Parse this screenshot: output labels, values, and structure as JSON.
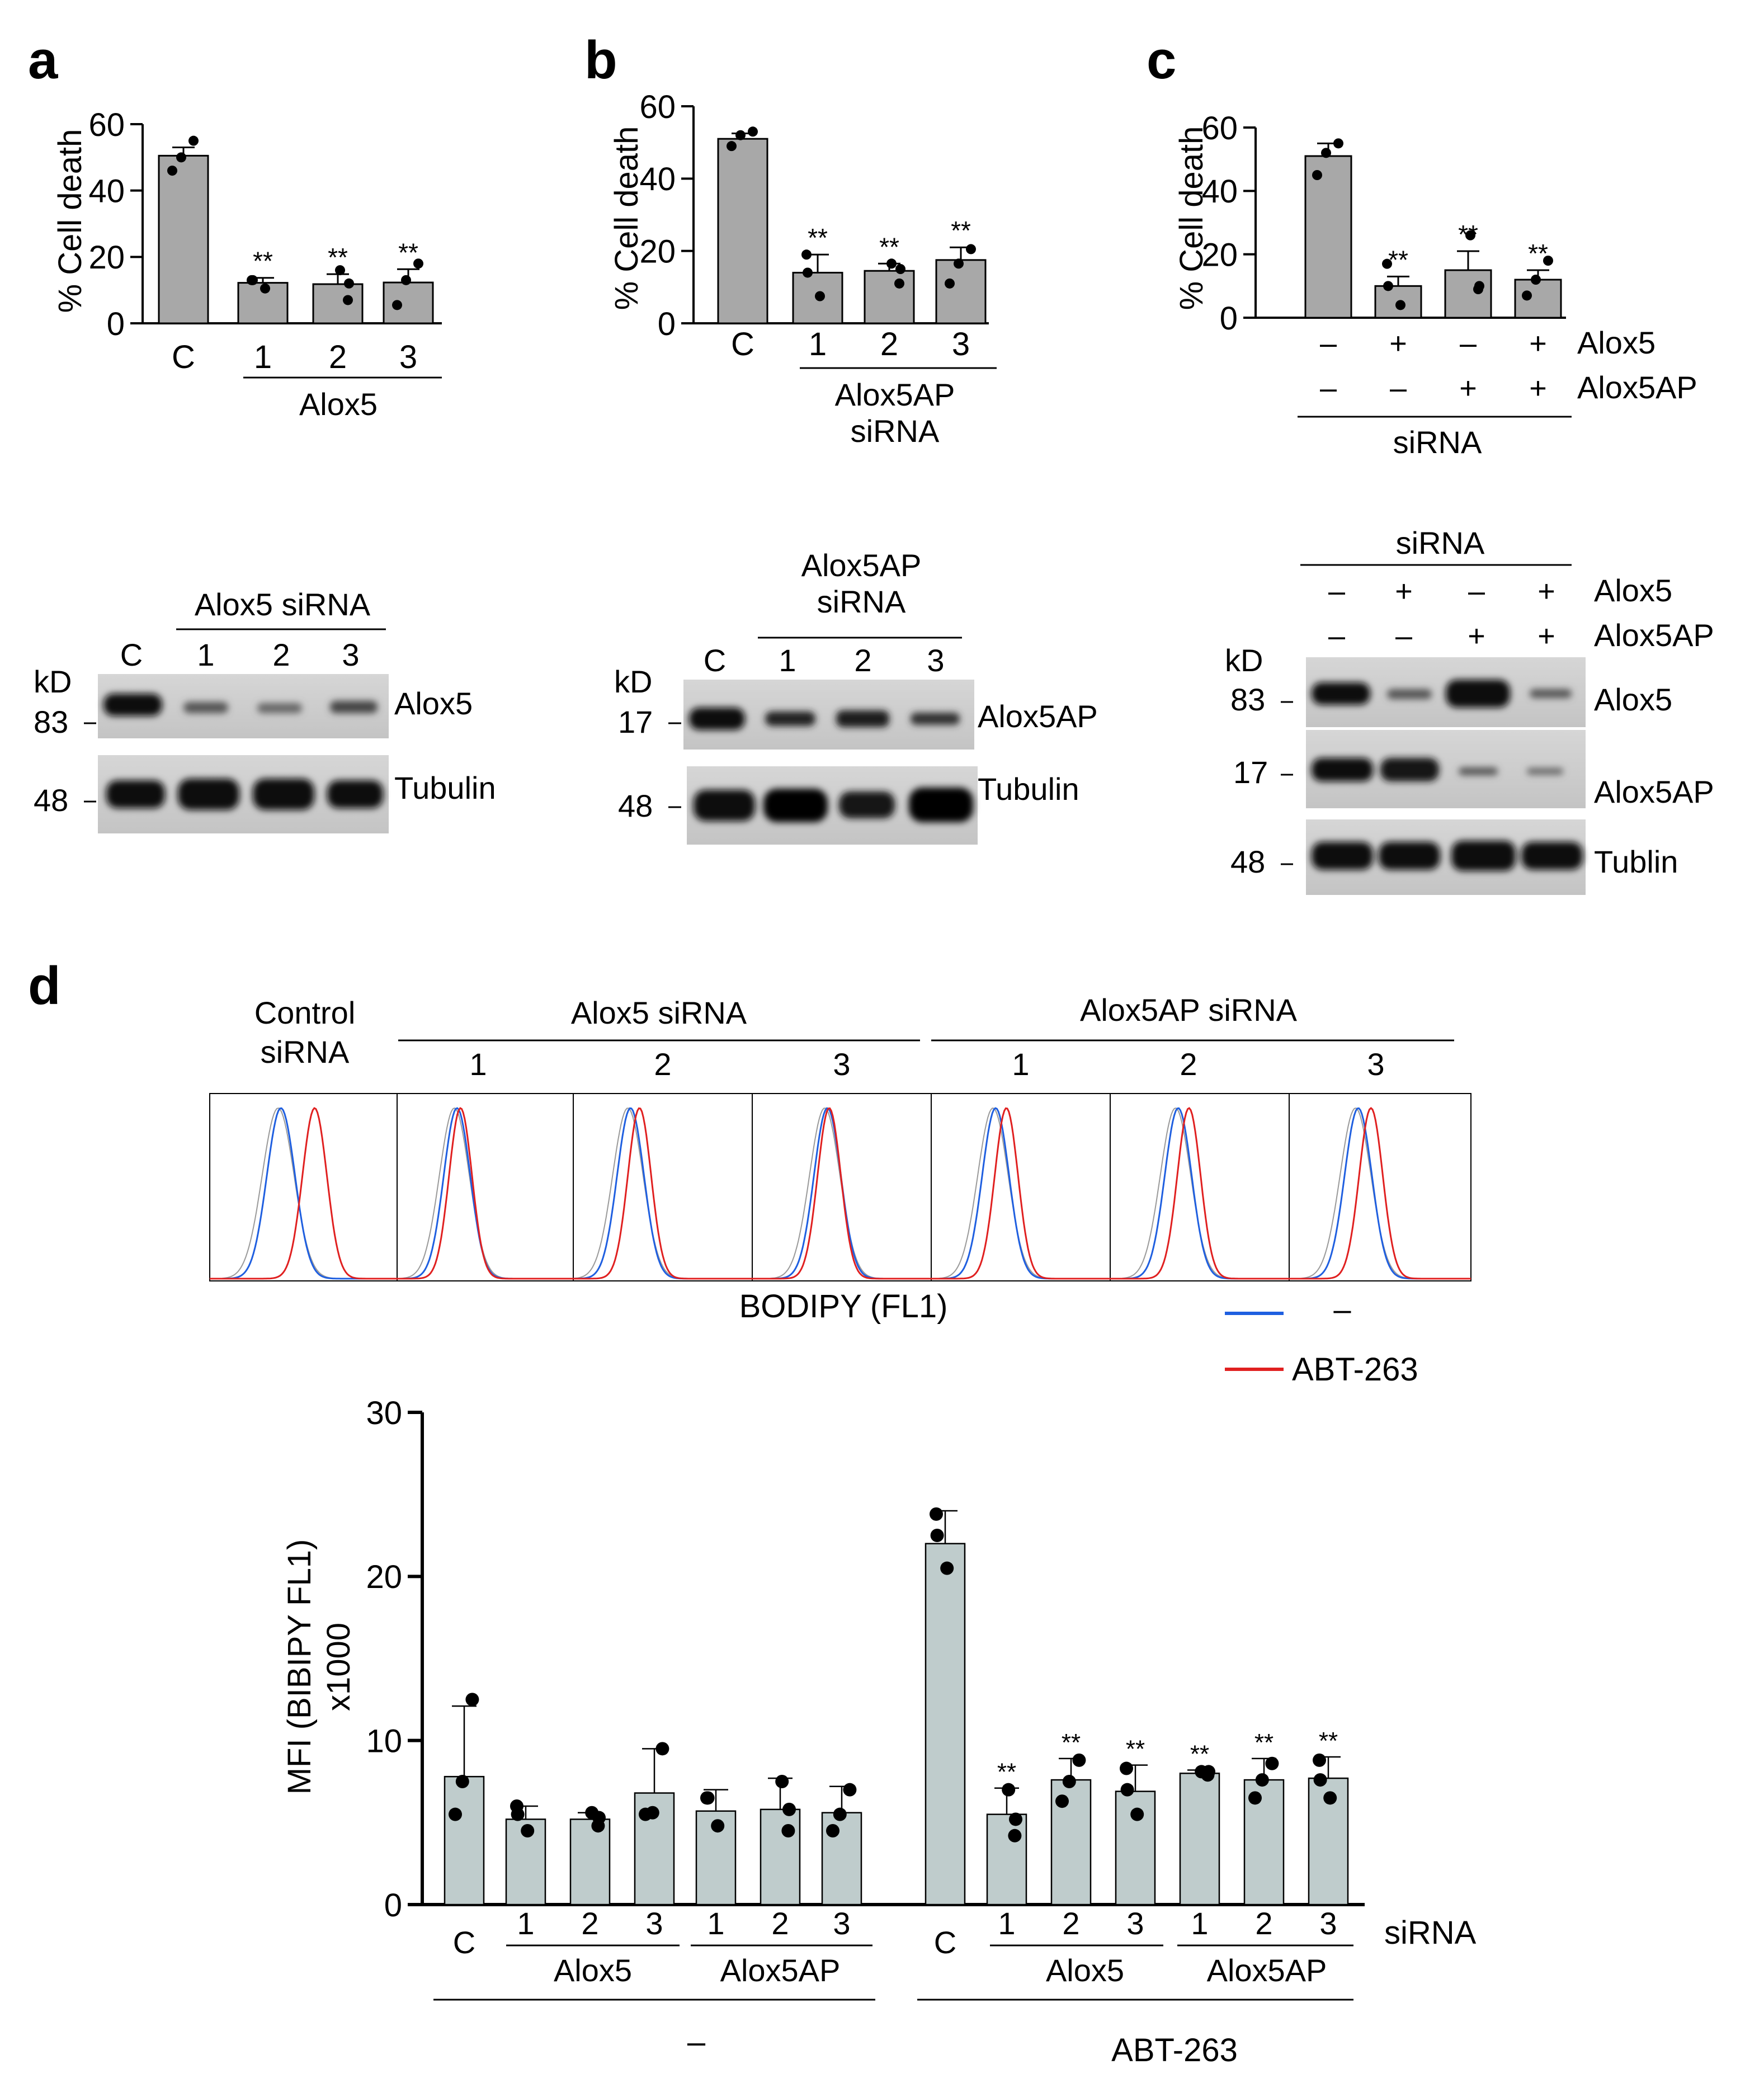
{
  "panels": {
    "a": {
      "letter": "a",
      "ylabel": "% Cell death",
      "yticks": [
        "0",
        "20",
        "40",
        "60"
      ],
      "cats": [
        "C",
        "1",
        "2",
        "3"
      ],
      "group_label": "Alox5",
      "blot_header": "Alox5 siRNA",
      "blot_lanes": [
        "C",
        "1",
        "2",
        "3"
      ],
      "kd": "kD",
      "blots": [
        {
          "mw": "83",
          "label": "Alox5"
        },
        {
          "mw": "48",
          "label": "Tubulin"
        }
      ]
    },
    "b": {
      "letter": "b",
      "ylabel": "% Cell death",
      "yticks": [
        "0",
        "20",
        "40",
        "60"
      ],
      "cats": [
        "C",
        "1",
        "2",
        "3"
      ],
      "group_label": [
        "Alox5AP",
        "siRNA"
      ],
      "blot_header": [
        "Alox5AP",
        "siRNA"
      ],
      "blot_lanes": [
        "C",
        "1",
        "2",
        "3"
      ],
      "kd": "kD",
      "blots": [
        {
          "mw": "17",
          "label": "Alox5AP"
        },
        {
          "mw": "48",
          "label": "Tubulin"
        }
      ]
    },
    "c": {
      "letter": "c",
      "ylabel": "% Cell death",
      "yticks": [
        "0",
        "20",
        "40",
        "60"
      ],
      "row1": [
        "–",
        "+",
        "–",
        "+"
      ],
      "row1_label": "Alox5",
      "row2": [
        "–",
        "–",
        "+",
        "+"
      ],
      "row2_label": "Alox5AP",
      "group_label": "siRNA",
      "blot_header": "siRNA",
      "kd": "kD",
      "blots": [
        {
          "mw": "83",
          "label": "Alox5"
        },
        {
          "mw": "17",
          "label": "Alox5AP"
        },
        {
          "mw": "48",
          "label": "Tublin"
        }
      ]
    },
    "d": {
      "letter": "d",
      "control_label": [
        "Control",
        "siRNA"
      ],
      "group1": "Alox5 siRNA",
      "group2": "Alox5AP siRNA",
      "lanes": [
        "1",
        "2",
        "3",
        "1",
        "2",
        "3"
      ],
      "xlabel": "BODIPY (FL1)",
      "legend": [
        {
          "name": "–",
          "color": "#1f5fe0"
        },
        {
          "name": "ABT-263",
          "color": "#e02020"
        }
      ],
      "bar_ylabel": [
        "MFI (BIBIPY FL1)",
        "x1000"
      ],
      "bar_yticks": [
        "0",
        "10",
        "20",
        "30"
      ],
      "bar_cats": [
        "C",
        "1",
        "2",
        "3",
        "1",
        "2",
        "3",
        "C",
        "1",
        "2",
        "3",
        "1",
        "2",
        "3"
      ],
      "sub_labels": [
        "Alox5",
        "Alox5AP",
        "Alox5",
        "Alox5AP"
      ],
      "treat_labels": [
        "–",
        "ABT-263"
      ],
      "sirna_label": "siRNA"
    }
  },
  "colors": {
    "bar_gray": "#a8a8a8",
    "bar_teal": "#bfcccc",
    "hist_blue": "#1f5fe0",
    "hist_red": "#e02020",
    "hist_gray": "#9a9a9a"
  },
  "chart_data": [
    {
      "type": "bar",
      "panel": "a",
      "categories": [
        "C",
        "1",
        "2",
        "3"
      ],
      "values": [
        50.5,
        12.2,
        11.8,
        12.3
      ],
      "errors": [
        2.5,
        1.5,
        3,
        4
      ],
      "points": [
        [
          46,
          50,
          55
        ],
        [
          10.5,
          13,
          13
        ],
        [
          7,
          12,
          16
        ],
        [
          5.5,
          13,
          18
        ]
      ],
      "significance": [
        "",
        "**",
        "**",
        "**"
      ],
      "ylabel": "% Cell death",
      "ylim": [
        0,
        60
      ]
    },
    {
      "type": "bar",
      "panel": "b",
      "categories": [
        "C",
        "1",
        "2",
        "3"
      ],
      "values": [
        51,
        14,
        14.5,
        17.5
      ],
      "errors": [
        1.5,
        5,
        2,
        3.5
      ],
      "points": [
        [
          49,
          52,
          53
        ],
        [
          7.5,
          14,
          19
        ],
        [
          11,
          15,
          16.5
        ],
        [
          11,
          16.5,
          20.5
        ]
      ],
      "significance": [
        "",
        "**",
        "**",
        "**"
      ],
      "ylabel": "% Cell death",
      "ylim": [
        0,
        60
      ]
    },
    {
      "type": "bar",
      "panel": "c",
      "categories": [
        "– / –",
        "+ / –",
        "– / +",
        "+ / +"
      ],
      "values": [
        51,
        10,
        15,
        12
      ],
      "errors": [
        4,
        3,
        6,
        3
      ],
      "points": [
        [
          45,
          52,
          55
        ],
        [
          4,
          10,
          17
        ],
        [
          9,
          10,
          26
        ],
        [
          7,
          12,
          18
        ]
      ],
      "significance": [
        "",
        "**",
        "**",
        "**"
      ],
      "ylabel": "% Cell death",
      "ylim": [
        0,
        60
      ]
    },
    {
      "type": "bar",
      "panel": "d",
      "categories": [
        "C",
        "1",
        "2",
        "3",
        "1",
        "2",
        "3",
        "C",
        "1",
        "2",
        "3",
        "1",
        "2",
        "3"
      ],
      "values": [
        7.8,
        5.2,
        5.2,
        6.8,
        5.7,
        5.8,
        5.6,
        22,
        5.5,
        7.6,
        6.9,
        8.0,
        7.6,
        7.7
      ],
      "errors": [
        4.3,
        0.8,
        0.4,
        2.7,
        1.3,
        1.9,
        1.6,
        2.0,
        1.6,
        1.3,
        1.6,
        0.2,
        1.3,
        1.3
      ],
      "points": [
        [
          5.5,
          7.5,
          12.5
        ],
        [
          4.5,
          5.5,
          6
        ],
        [
          4.8,
          5.3,
          5.6
        ],
        [
          5.5,
          5.6,
          9.5
        ],
        [
          4.8,
          6.5,
          6.5
        ],
        [
          4.5,
          5.8,
          7.5
        ],
        [
          4.5,
          5.5,
          7.0
        ],
        [
          20.5,
          22.5,
          23.8
        ],
        [
          4.2,
          5.2,
          7.0
        ],
        [
          6.3,
          7.5,
          8.8
        ],
        [
          5.5,
          7.0,
          8.3
        ],
        [
          7.9,
          8.1,
          8.1
        ],
        [
          6.5,
          7.6,
          8.6
        ],
        [
          6.5,
          7.6,
          8.8
        ]
      ],
      "significance": [
        "",
        "",
        "",
        "",
        "",
        "",
        "",
        "",
        "**",
        "**",
        "**",
        "**",
        "**",
        "**"
      ],
      "groups": [
        "–",
        "–",
        "–",
        "–",
        "–",
        "–",
        "–",
        "ABT-263",
        "ABT-263",
        "ABT-263",
        "ABT-263",
        "ABT-263",
        "ABT-263",
        "ABT-263"
      ],
      "ylabel": "MFI (BIBIPY FL1) x1000",
      "ylim": [
        0,
        30
      ]
    }
  ]
}
